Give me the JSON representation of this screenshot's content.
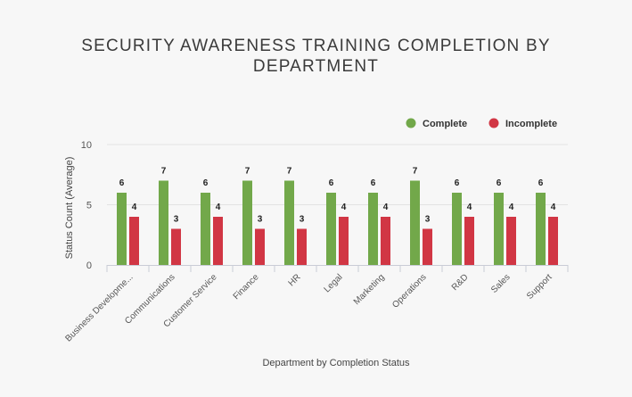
{
  "chart_data": {
    "type": "bar",
    "title": "SECURITY AWARENESS TRAINING COMPLETION BY DEPARTMENT",
    "xlabel": "Department by Completion Status",
    "ylabel": "Status Count (Average)",
    "ylim": [
      0,
      10
    ],
    "yticks": [
      "0",
      "5",
      "10"
    ],
    "categories": [
      "Business Developme...",
      "Communications",
      "Customer Service",
      "Finance",
      "HR",
      "Legal",
      "Marketing",
      "Operations",
      "R&D",
      "Sales",
      "Support"
    ],
    "series": [
      {
        "name": "Complete",
        "color": "#72a84a",
        "values": [
          6,
          7,
          6,
          7,
          7,
          6,
          6,
          7,
          6,
          6,
          6
        ]
      },
      {
        "name": "Incomplete",
        "color": "#d13644",
        "values": [
          4,
          3,
          4,
          3,
          3,
          4,
          4,
          3,
          4,
          4,
          4
        ]
      }
    ],
    "legend_position": "top-right",
    "grid": true
  }
}
